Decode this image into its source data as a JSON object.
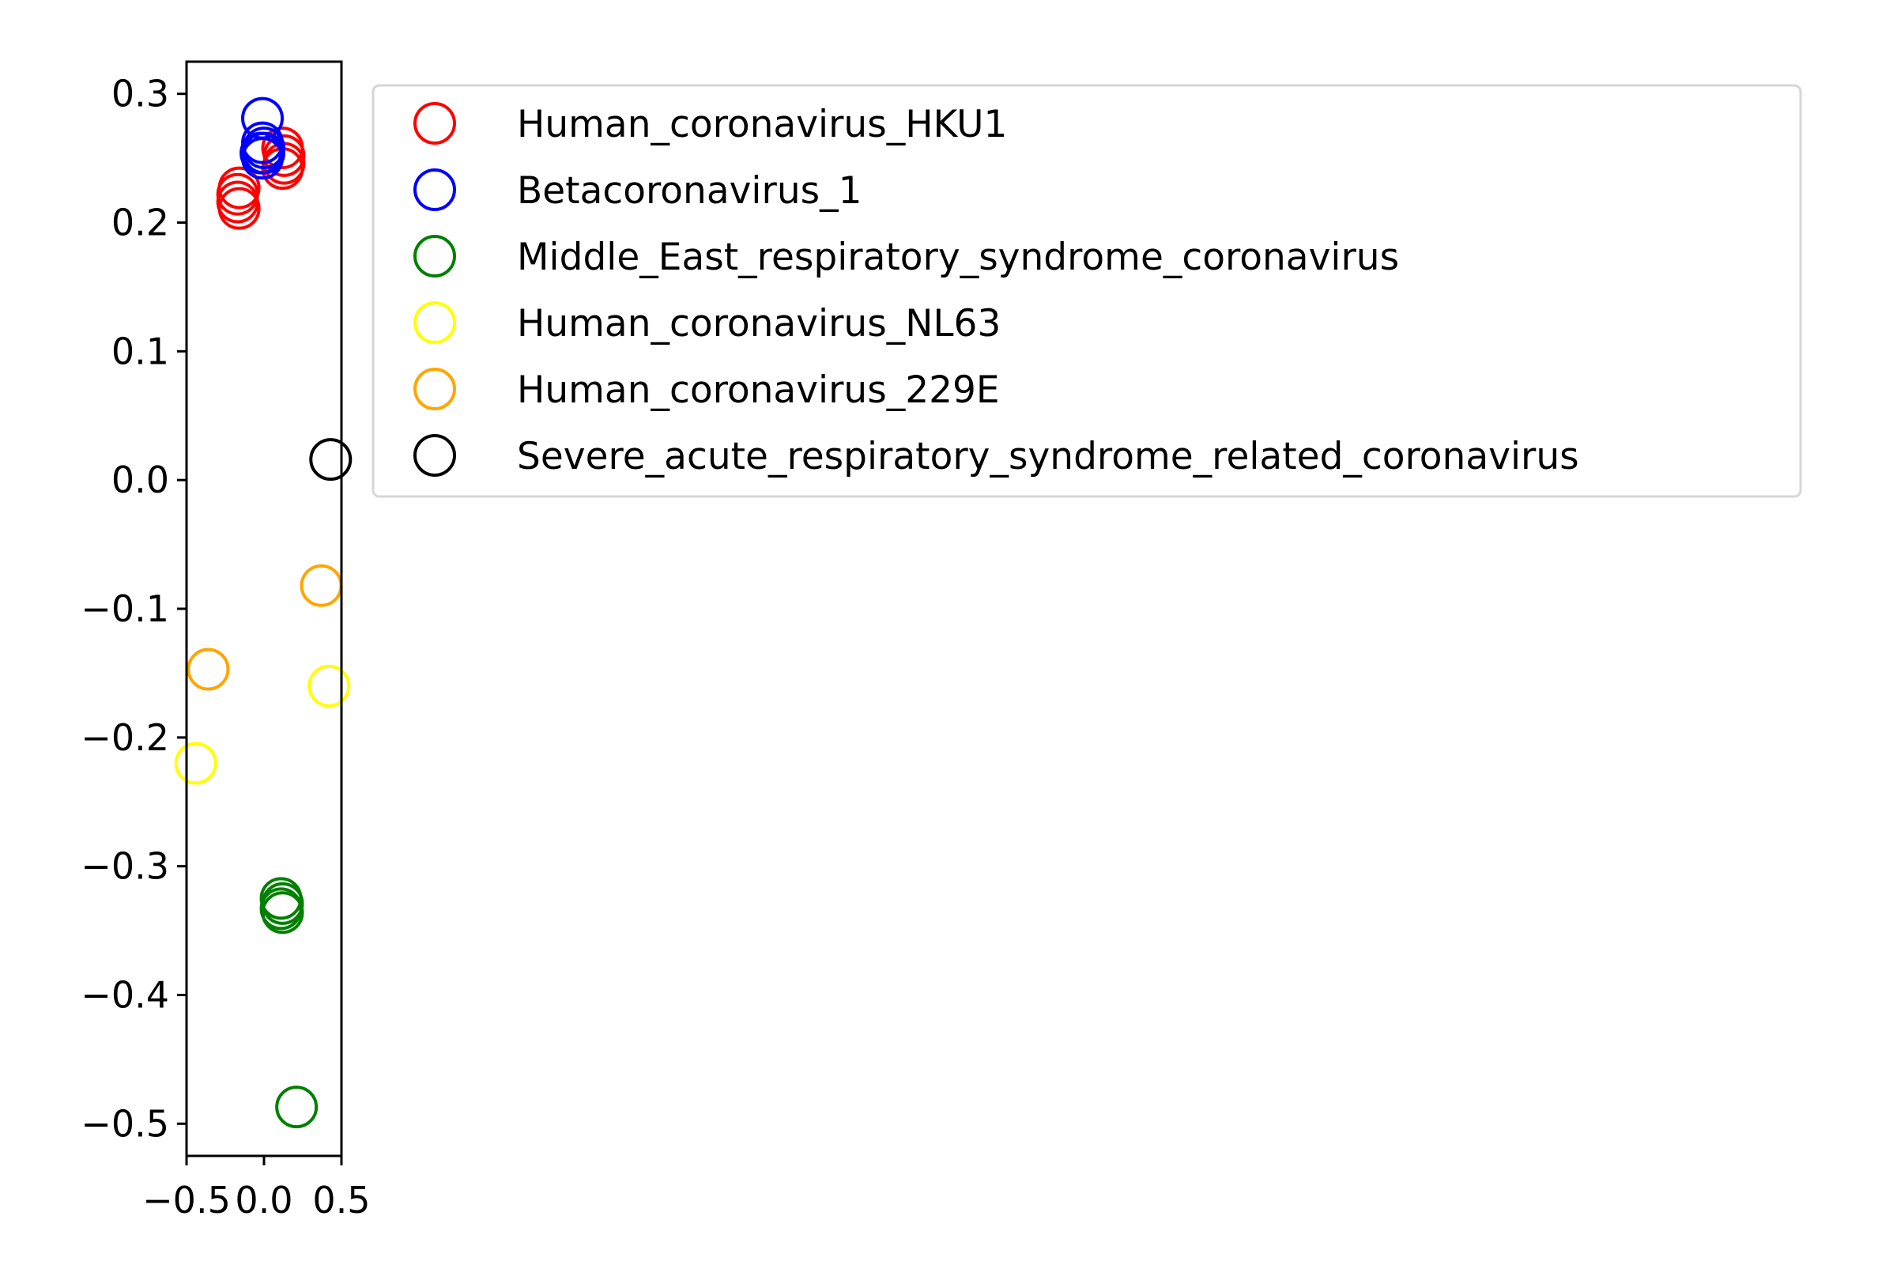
{
  "chart_data": {
    "type": "scatter",
    "title": "",
    "xlabel": "",
    "ylabel": "",
    "xlim": [
      -0.5,
      0.5
    ],
    "ylim": [
      -0.525,
      0.325
    ],
    "x_ticks": [
      {
        "value": -0.5,
        "label": "−0.5"
      },
      {
        "value": 0.0,
        "label": "0.0"
      },
      {
        "value": 0.5,
        "label": "0.5"
      }
    ],
    "y_ticks": [
      {
        "value": 0.3,
        "label": "0.3"
      },
      {
        "value": 0.2,
        "label": "0.2"
      },
      {
        "value": 0.1,
        "label": "0.1"
      },
      {
        "value": 0.0,
        "label": "0.0"
      },
      {
        "value": -0.1,
        "label": "−0.1"
      },
      {
        "value": -0.2,
        "label": "−0.2"
      },
      {
        "value": -0.3,
        "label": "−0.3"
      },
      {
        "value": -0.4,
        "label": "−0.4"
      },
      {
        "value": -0.5,
        "label": "−0.5"
      }
    ],
    "grid": false,
    "legend_position": "outside-right-top",
    "marker": "open-circle",
    "series": [
      {
        "name": "Human_coronavirus_HKU1",
        "color": "#ff0000",
        "points": [
          {
            "x": 0.12,
            "y": 0.258
          },
          {
            "x": 0.13,
            "y": 0.252
          },
          {
            "x": 0.13,
            "y": 0.246
          },
          {
            "x": 0.12,
            "y": 0.242
          },
          {
            "x": -0.16,
            "y": 0.227
          },
          {
            "x": -0.17,
            "y": 0.222
          },
          {
            "x": -0.17,
            "y": 0.216
          },
          {
            "x": -0.16,
            "y": 0.211
          }
        ]
      },
      {
        "name": "Betacoronavirus_1",
        "color": "#0000ff",
        "points": [
          {
            "x": -0.01,
            "y": 0.281
          },
          {
            "x": -0.01,
            "y": 0.262
          },
          {
            "x": 0.0,
            "y": 0.258
          },
          {
            "x": -0.02,
            "y": 0.254
          },
          {
            "x": -0.01,
            "y": 0.25
          },
          {
            "x": 0.0,
            "y": 0.254
          }
        ]
      },
      {
        "name": "Middle_East_respiratory_syndrome_coronavirus",
        "color": "#008000",
        "points": [
          {
            "x": 0.11,
            "y": -0.325
          },
          {
            "x": 0.12,
            "y": -0.329
          },
          {
            "x": 0.11,
            "y": -0.333
          },
          {
            "x": 0.12,
            "y": -0.336
          },
          {
            "x": 0.21,
            "y": -0.487
          }
        ]
      },
      {
        "name": "Human_coronavirus_NL63",
        "color": "#ffff00",
        "points": [
          {
            "x": 0.42,
            "y": -0.16
          },
          {
            "x": -0.44,
            "y": -0.22
          }
        ]
      },
      {
        "name": "Human_coronavirus_229E",
        "color": "#ffa500",
        "points": [
          {
            "x": 0.37,
            "y": -0.082
          },
          {
            "x": -0.36,
            "y": -0.147
          }
        ]
      },
      {
        "name": "Severe_acute_respiratory_syndrome_related_coronavirus",
        "color": "#000000",
        "points": [
          {
            "x": 0.43,
            "y": 0.016
          }
        ]
      }
    ]
  }
}
